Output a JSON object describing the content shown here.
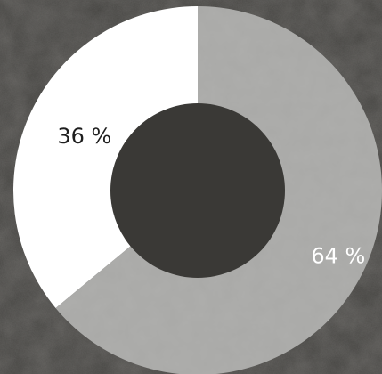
{
  "chart_data": {
    "type": "pie",
    "style": "donut",
    "title": "",
    "categories": [
      "",
      ""
    ],
    "values": [
      36,
      64
    ],
    "labels": [
      "36 %",
      "64 %"
    ],
    "colors": [
      "#ffffff",
      "#a9a9a7"
    ],
    "label_colors": [
      "#1e1e1e",
      "#ffffff"
    ],
    "start_angle_deg": 0,
    "direction": "counterclockwise",
    "legend": "none"
  },
  "colors": {
    "background": "#3a3936",
    "hole": "#3a3936"
  }
}
